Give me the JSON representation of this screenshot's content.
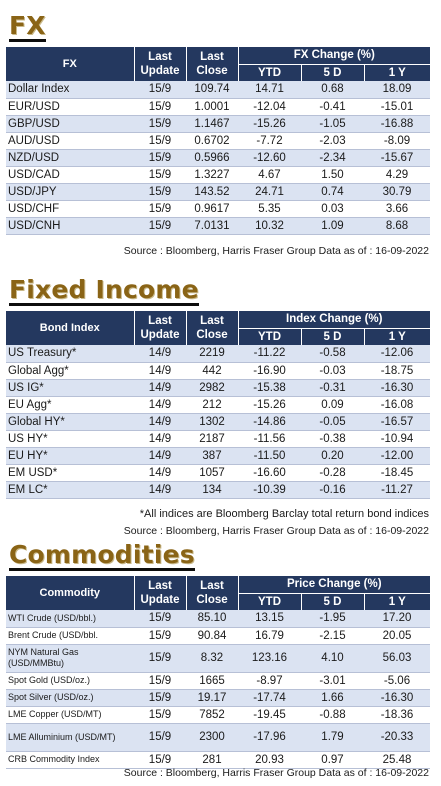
{
  "fx": {
    "title": "FX",
    "headers": {
      "name": "FX",
      "last_update": "Last\nUpdate",
      "last_close": "Last\nClose",
      "change": "FX Change (%)",
      "ytd": "YTD",
      "d5": "5 D",
      "y1": "1 Y"
    },
    "rows": [
      {
        "name": "Dollar Index",
        "update": "15/9",
        "close": "109.74",
        "ytd": "14.71",
        "d5": "0.68",
        "y1": "18.09"
      },
      {
        "name": "EUR/USD",
        "update": "15/9",
        "close": "1.0001",
        "ytd": "-12.04",
        "d5": "-0.41",
        "y1": "-15.01"
      },
      {
        "name": "GBP/USD",
        "update": "15/9",
        "close": "1.1467",
        "ytd": "-15.26",
        "d5": "-1.05",
        "y1": "-16.88"
      },
      {
        "name": "AUD/USD",
        "update": "15/9",
        "close": "0.6702",
        "ytd": "-7.72",
        "d5": "-2.03",
        "y1": "-8.09"
      },
      {
        "name": "NZD/USD",
        "update": "15/9",
        "close": "0.5966",
        "ytd": "-12.60",
        "d5": "-2.34",
        "y1": "-15.67"
      },
      {
        "name": "USD/CAD",
        "update": "15/9",
        "close": "1.3227",
        "ytd": "4.67",
        "d5": "1.50",
        "y1": "4.29"
      },
      {
        "name": "USD/JPY",
        "update": "15/9",
        "close": "143.52",
        "ytd": "24.71",
        "d5": "0.74",
        "y1": "30.79"
      },
      {
        "name": "USD/CHF",
        "update": "15/9",
        "close": "0.9617",
        "ytd": "5.35",
        "d5": "0.03",
        "y1": "3.66"
      },
      {
        "name": "USD/CNH",
        "update": "15/9",
        "close": "7.0131",
        "ytd": "10.32",
        "d5": "1.09",
        "y1": "8.68"
      }
    ],
    "source": "Source : Bloomberg, Harris Fraser Group Data as of : 16-09-2022"
  },
  "fixed_income": {
    "title": "Fixed Income",
    "headers": {
      "name": "Bond Index",
      "last_update": "Last\nUpdate",
      "last_close": "Last\nClose",
      "change": "Index Change (%)",
      "ytd": "YTD",
      "d5": "5 D",
      "y1": "1 Y"
    },
    "rows": [
      {
        "name": "US Treasury*",
        "update": "14/9",
        "close": "2219",
        "ytd": "-11.22",
        "d5": "-0.58",
        "y1": "-12.06"
      },
      {
        "name": "Global Agg*",
        "update": "14/9",
        "close": "442",
        "ytd": "-16.90",
        "d5": "-0.03",
        "y1": "-18.75"
      },
      {
        "name": "US IG*",
        "update": "14/9",
        "close": "2982",
        "ytd": "-15.38",
        "d5": "-0.31",
        "y1": "-16.30"
      },
      {
        "name": "EU Agg*",
        "update": "14/9",
        "close": "212",
        "ytd": "-15.26",
        "d5": "0.09",
        "y1": "-16.08"
      },
      {
        "name": "Global HY*",
        "update": "14/9",
        "close": "1302",
        "ytd": "-14.86",
        "d5": "-0.05",
        "y1": "-16.57"
      },
      {
        "name": "US HY*",
        "update": "14/9",
        "close": "2187",
        "ytd": "-11.56",
        "d5": "-0.38",
        "y1": "-10.94"
      },
      {
        "name": "EU HY*",
        "update": "14/9",
        "close": "387",
        "ytd": "-11.50",
        "d5": "0.20",
        "y1": "-12.00"
      },
      {
        "name": "EM USD*",
        "update": "14/9",
        "close": "1057",
        "ytd": "-16.60",
        "d5": "-0.28",
        "y1": "-18.45"
      },
      {
        "name": "EM LC*",
        "update": "14/9",
        "close": "134",
        "ytd": "-10.39",
        "d5": "-0.16",
        "y1": "-11.27"
      }
    ],
    "footnote": "*All indices are Bloomberg Barclay total return bond indices",
    "source": "Source : Bloomberg, Harris Fraser Group Data as of : 16-09-2022"
  },
  "commodities": {
    "title": "Commodities",
    "headers": {
      "name": "Commodity",
      "last_update": "Last\nUpdate",
      "last_close": "Last\nClose",
      "change": "Price Change (%)",
      "ytd": "YTD",
      "d5": "5 D",
      "y1": "1 Y"
    },
    "rows": [
      {
        "name": "WTI Crude (USD/bbl.)",
        "update": "15/9",
        "close": "85.10",
        "ytd": "13.15",
        "d5": "-1.95",
        "y1": "17.20"
      },
      {
        "name": "Brent Crude (USD/bbl.",
        "update": "15/9",
        "close": "90.84",
        "ytd": "16.79",
        "d5": "-2.15",
        "y1": "20.05"
      },
      {
        "name": "NYM Natural Gas (USD/MMBtu)",
        "update": "15/9",
        "close": "8.32",
        "ytd": "123.16",
        "d5": "4.10",
        "y1": "56.03"
      },
      {
        "name": "Spot Gold (USD/oz.)",
        "update": "15/9",
        "close": "1665",
        "ytd": "-8.97",
        "d5": "-3.01",
        "y1": "-5.06"
      },
      {
        "name": "Spot Silver (USD/oz.)",
        "update": "15/9",
        "close": "19.17",
        "ytd": "-17.74",
        "d5": "1.66",
        "y1": "-16.30"
      },
      {
        "name": "LME Copper (USD/MT)",
        "update": "15/9",
        "close": "7852",
        "ytd": "-19.45",
        "d5": "-0.88",
        "y1": "-18.36"
      },
      {
        "name": "LME Alluminium (USD/MT)",
        "update": "15/9",
        "close": "2300",
        "ytd": "-17.96",
        "d5": "1.79",
        "y1": "-20.33"
      },
      {
        "name": "CRB Commodity Index",
        "update": "15/9",
        "close": "281",
        "ytd": "20.93",
        "d5": "0.97",
        "y1": "25.48"
      }
    ],
    "source": "Source : Bloomberg, Harris Fraser Group Data as of : 16-09-2022"
  }
}
